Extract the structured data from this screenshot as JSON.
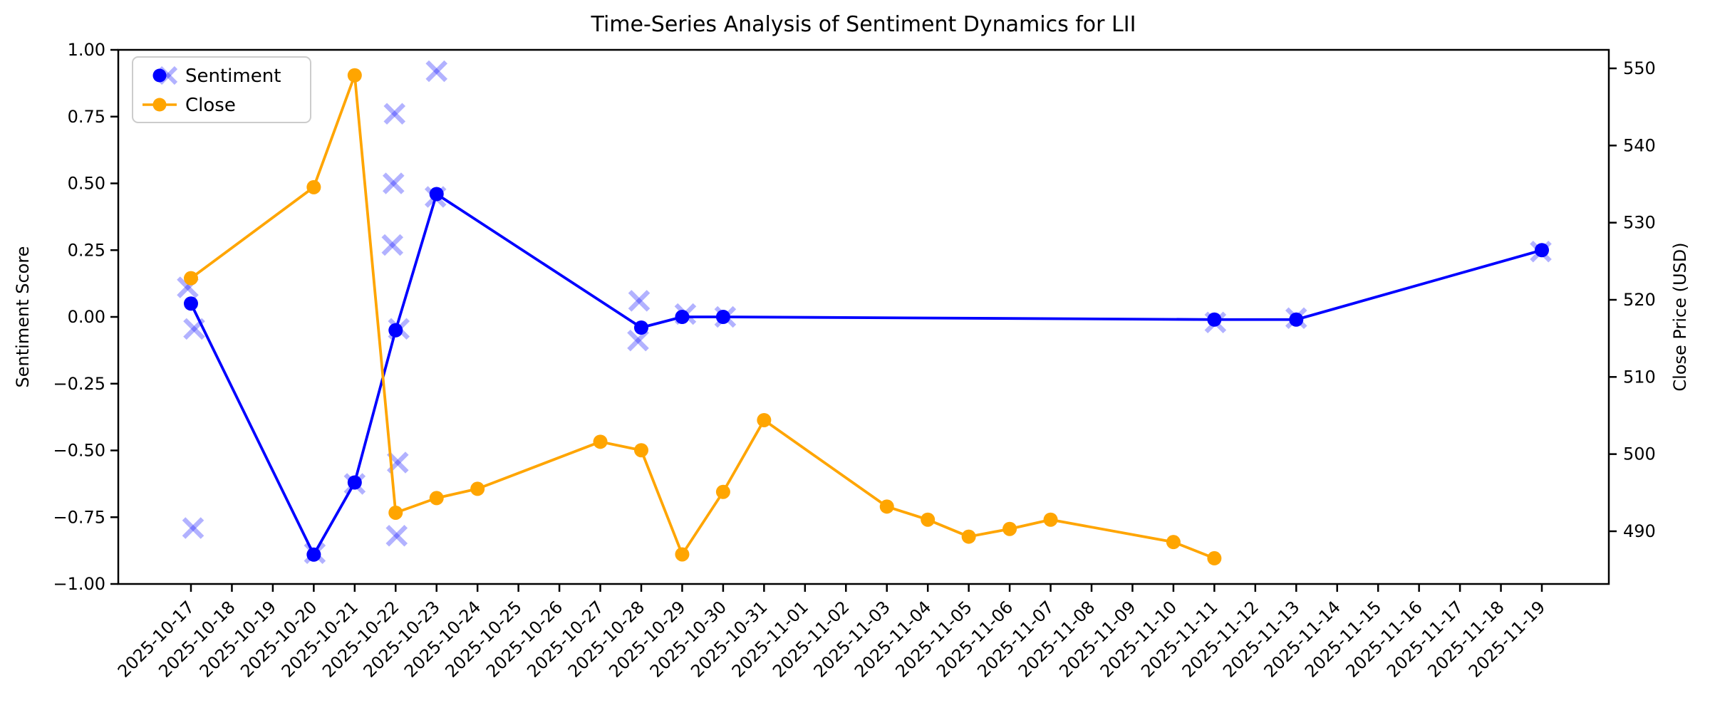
{
  "title": "Time-Series Analysis of Sentiment Dynamics for LII",
  "axes": {
    "ylabel_left": "Sentiment Score",
    "ylabel_right": "Close Price (USD)"
  },
  "legend": {
    "sentiment_label": "Sentiment",
    "close_label": "Close"
  },
  "chart_data": {
    "type": "line",
    "title": "Time-Series Analysis of Sentiment Dynamics for LII",
    "xlabel": "",
    "ylabel_left": "Sentiment Score",
    "ylabel_right": "Close Price (USD)",
    "legend_position": "upper left",
    "grid": false,
    "ylim_left": [
      -1.0,
      1.0
    ],
    "ylim_right": [
      483.2,
      552.4
    ],
    "colors": {
      "sentiment": "#0000ff",
      "close": "#ffa500",
      "scatter": "rgba(0,0,255,0.3)",
      "spine": "#000000"
    },
    "yticks_left": [
      {
        "v": 1.0,
        "label": "1.00"
      },
      {
        "v": 0.75,
        "label": "0.75"
      },
      {
        "v": 0.5,
        "label": "0.50"
      },
      {
        "v": 0.25,
        "label": "0.25"
      },
      {
        "v": 0.0,
        "label": "0.00"
      },
      {
        "v": -0.25,
        "label": "−0.25"
      },
      {
        "v": -0.5,
        "label": "−0.50"
      },
      {
        "v": -0.75,
        "label": "−0.75"
      },
      {
        "v": -1.0,
        "label": "−1.00"
      }
    ],
    "yticks_right": [
      {
        "v": 550,
        "label": "550"
      },
      {
        "v": 540,
        "label": "540"
      },
      {
        "v": 530,
        "label": "530"
      },
      {
        "v": 520,
        "label": "520"
      },
      {
        "v": 510,
        "label": "510"
      },
      {
        "v": 500,
        "label": "500"
      },
      {
        "v": 490,
        "label": "490"
      }
    ],
    "x_tick_labels": [
      "2025-10-17",
      "2025-10-18",
      "2025-10-19",
      "2025-10-20",
      "2025-10-21",
      "2025-10-22",
      "2025-10-23",
      "2025-10-24",
      "2025-10-25",
      "2025-10-26",
      "2025-10-27",
      "2025-10-28",
      "2025-10-29",
      "2025-10-30",
      "2025-10-31",
      "2025-11-01",
      "2025-11-02",
      "2025-11-03",
      "2025-11-04",
      "2025-11-05",
      "2025-11-06",
      "2025-11-07",
      "2025-11-08",
      "2025-11-09",
      "2025-11-10",
      "2025-11-11",
      "2025-11-12",
      "2025-11-13",
      "2025-11-14",
      "2025-11-15",
      "2025-11-16",
      "2025-11-17",
      "2025-11-18",
      "2025-11-19"
    ],
    "series": [
      {
        "name": "Sentiment",
        "chart": "line",
        "marker": "circle",
        "axis": "left",
        "color": "#0000ff",
        "points": [
          [
            "2025-10-17",
            0.05
          ],
          [
            "2025-10-20",
            -0.89
          ],
          [
            "2025-10-21",
            -0.62
          ],
          [
            "2025-10-22",
            -0.05
          ],
          [
            "2025-10-23",
            0.46
          ],
          [
            "2025-10-28",
            -0.04
          ],
          [
            "2025-10-29",
            0.0
          ],
          [
            "2025-10-30",
            0.0
          ],
          [
            "2025-11-11",
            -0.01
          ],
          [
            "2025-11-13",
            -0.01
          ],
          [
            "2025-11-19",
            0.25
          ]
        ]
      },
      {
        "name": "Close",
        "chart": "line",
        "marker": "circle",
        "axis": "right",
        "color": "#ffa500",
        "points": [
          [
            "2025-10-17",
            522.8
          ],
          [
            "2025-10-20",
            534.6
          ],
          [
            "2025-10-21",
            549.1
          ],
          [
            "2025-10-22",
            492.4
          ],
          [
            "2025-10-23",
            494.3
          ],
          [
            "2025-10-24",
            495.5
          ],
          [
            "2025-10-27",
            501.6
          ],
          [
            "2025-10-28",
            500.5
          ],
          [
            "2025-10-29",
            487.0
          ],
          [
            "2025-10-30",
            495.1
          ],
          [
            "2025-10-31",
            504.4
          ],
          [
            "2025-11-03",
            493.2
          ],
          [
            "2025-11-04",
            491.5
          ],
          [
            "2025-11-05",
            489.3
          ],
          [
            "2025-11-06",
            490.3
          ],
          [
            "2025-11-07",
            491.5
          ],
          [
            "2025-11-10",
            488.6
          ],
          [
            "2025-11-11",
            486.5
          ]
        ]
      },
      {
        "name": "Sentiment scatter",
        "chart": "scatter",
        "marker": "x",
        "axis": "left",
        "color": "rgba(0,0,255,0.3)",
        "points": [
          [
            "2025-10-17",
            0.1
          ],
          [
            "2025-10-17",
            -0.045
          ],
          [
            "2025-10-17",
            -0.78
          ],
          [
            "2025-10-20",
            -0.89
          ],
          [
            "2025-10-21",
            -0.62
          ],
          [
            "2025-10-22",
            0.75
          ],
          [
            "2025-10-22",
            0.5
          ],
          [
            "2025-10-22",
            0.28
          ],
          [
            "2025-10-22",
            -0.05
          ],
          [
            "2025-10-22",
            -0.54
          ],
          [
            "2025-10-22",
            -0.83
          ],
          [
            "2025-10-23",
            0.92
          ],
          [
            "2025-10-23",
            0.46
          ],
          [
            "2025-10-28",
            0.055
          ],
          [
            "2025-10-28",
            -0.083
          ],
          [
            "2025-10-29",
            0.0
          ],
          [
            "2025-10-30",
            0.0
          ],
          [
            "2025-11-11",
            -0.01
          ],
          [
            "2025-11-13",
            -0.01
          ],
          [
            "2025-11-19",
            0.25
          ]
        ]
      }
    ]
  }
}
